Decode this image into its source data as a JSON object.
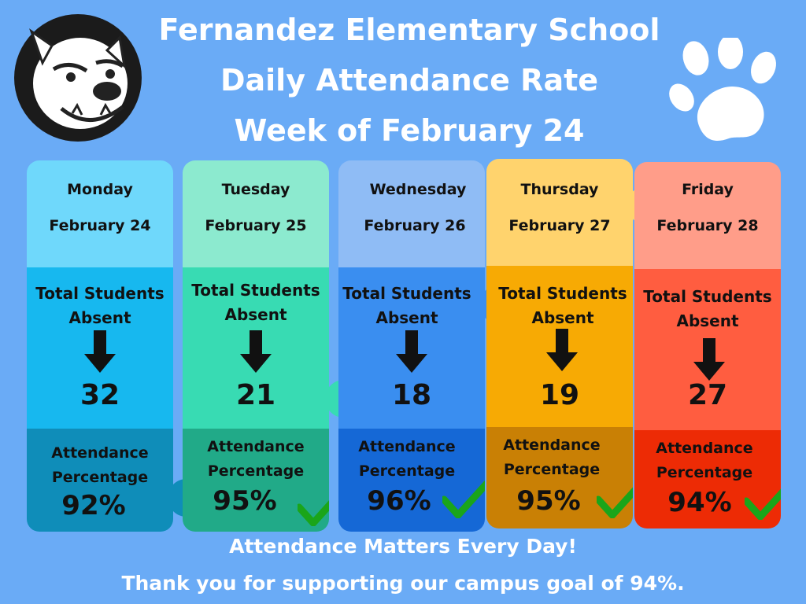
{
  "title": {
    "line1": "Fernandez Elementary School",
    "line2": "Daily Attendance Rate",
    "line3": "Week of February 24"
  },
  "days": [
    {
      "day": "Monday",
      "date": "February 24",
      "absent_label_1": "Total Students",
      "absent_label_2": "Absent",
      "absent": "32",
      "att_label_1": "Attendance",
      "att_label_2": "Percentage",
      "percentage": "92%",
      "goal_met": false
    },
    {
      "day": "Tuesday",
      "date": "February 25",
      "absent_label_1": "Total Students",
      "absent_label_2": "Absent",
      "absent": "21",
      "att_label_1": "Attendance",
      "att_label_2": "Percentage",
      "percentage": "95%",
      "goal_met": true
    },
    {
      "day": "Wednesday",
      "date": "February 26",
      "absent_label_1": "Total Students",
      "absent_label_2": "Absent",
      "absent": "18",
      "att_label_1": "Attendance",
      "att_label_2": "Percentage",
      "percentage": "96%",
      "goal_met": true
    },
    {
      "day": "Thursday",
      "date": "February 27",
      "absent_label_1": "Total Students",
      "absent_label_2": "Absent",
      "absent": "19",
      "att_label_1": "Attendance",
      "att_label_2": "Percentage",
      "percentage": "95%",
      "goal_met": true
    },
    {
      "day": "Friday",
      "date": "February 28",
      "absent_label_1": "Total Students",
      "absent_label_2": "Absent",
      "absent": "27",
      "att_label_1": "Attendance",
      "att_label_2": "Percentage",
      "percentage": "94%",
      "goal_met": true
    }
  ],
  "footer": {
    "line1": "Attendance Matters Every Day!",
    "line2": "Thank you for supporting our campus goal of 94%."
  },
  "icons": {
    "logo": "bulldog-mascot-icon",
    "decoration": "paw-print-icon",
    "arrow": "arrow-down-icon",
    "check": "checkmark-icon"
  },
  "colors": {
    "background": "#6aabf6",
    "monday": [
      "#6fd8fb",
      "#17b8ef",
      "#0f8db9"
    ],
    "tuesday": [
      "#8ceacf",
      "#38dbb3",
      "#21aa88"
    ],
    "wednesday": [
      "#8fbcf5",
      "#3a8ef0",
      "#1568d6"
    ],
    "thursday": [
      "#ffd36d",
      "#f7aa04",
      "#c98005"
    ],
    "friday": [
      "#ff9d89",
      "#ff5d40",
      "#ed2b05"
    ],
    "check": "#1aa51a"
  }
}
